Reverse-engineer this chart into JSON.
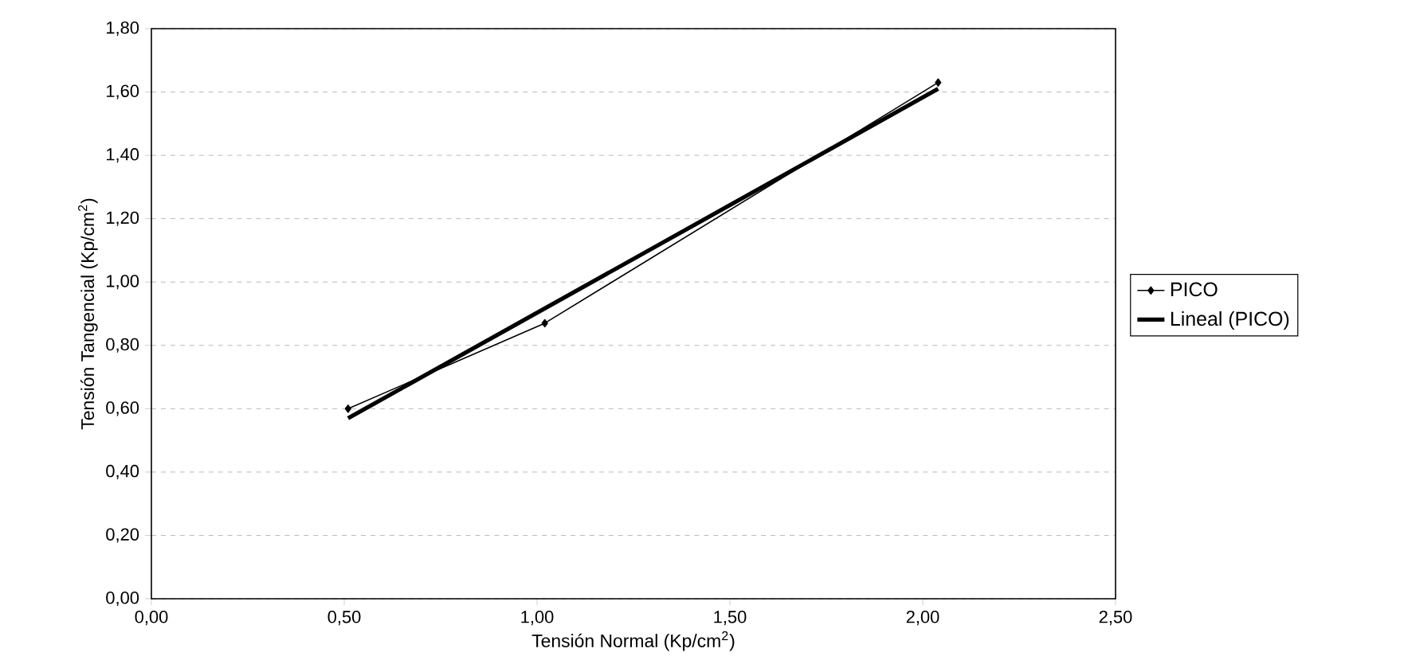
{
  "chart_data": {
    "type": "line",
    "xlabel": "Tensión Normal (Kp/cm$^{2}$)",
    "ylabel": "Tensión Tangencial (Kp/cm$^{2}$)",
    "x": [
      0.51,
      1.02,
      2.04
    ],
    "series": [
      {
        "name": "PICO",
        "color": "#000000",
        "values": [
          0.6,
          0.87,
          1.63
        ],
        "marker": "diamond"
      },
      {
        "name": "Lineal (PICO)",
        "type": "line",
        "color": "#000000",
        "x": [
          0.51,
          2.04
        ],
        "values": [
          0.57,
          1.61
        ],
        "marker": "none"
      }
    ],
    "xlim": [
      0,
      2.5
    ],
    "ylim": [
      0,
      1.8
    ],
    "xticks": [
      {
        "value": 0,
        "label": "0,00"
      },
      {
        "value": 0.5,
        "label": "0,50"
      },
      {
        "value": 1,
        "label": "1,00"
      },
      {
        "value": 1.5,
        "label": "1,50"
      },
      {
        "value": 2,
        "label": "2,00"
      },
      {
        "value": 2.5,
        "label": "2,50"
      }
    ],
    "yticks": [
      {
        "value": 0,
        "label": "0,00"
      },
      {
        "value": 0.2,
        "label": "0,20"
      },
      {
        "value": 0.4,
        "label": "0,40"
      },
      {
        "value": 0.6,
        "label": "0,60"
      },
      {
        "value": 0.8,
        "label": "0,80"
      },
      {
        "value": 1,
        "label": "1,00"
      },
      {
        "value": 1.2,
        "label": "1,20"
      },
      {
        "value": 1.4,
        "label": "1,40"
      },
      {
        "value": 1.6,
        "label": "1,60"
      },
      {
        "value": 1.8,
        "label": "1,80"
      }
    ],
    "grid": "y",
    "legend": "right"
  }
}
